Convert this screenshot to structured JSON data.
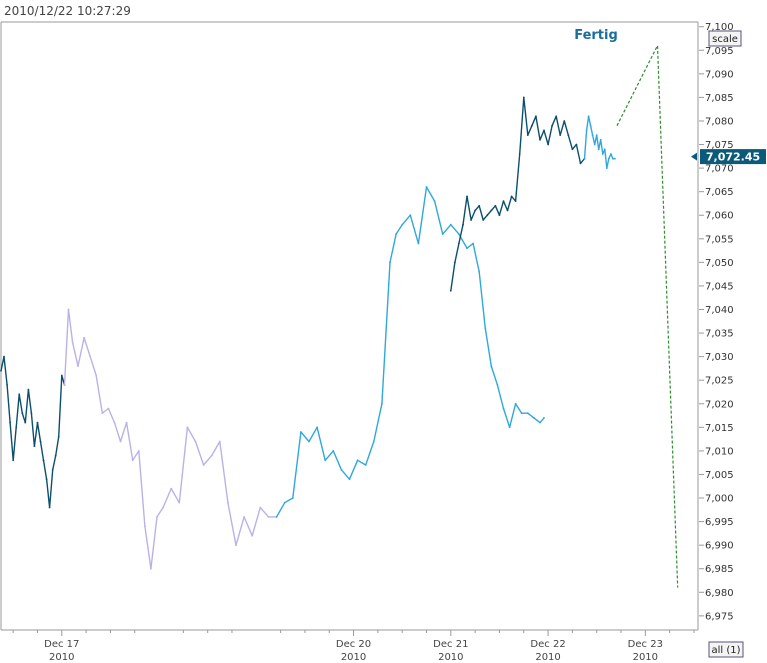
{
  "header": {
    "timestamp": "2010/12/22 10:27:29"
  },
  "controls": {
    "scale_label": "scale",
    "all_label": "all (1)"
  },
  "colors": {
    "dark": "#0b4f6c",
    "light_blue": "#2fa8dc",
    "lavender": "#b9b2e6",
    "forecast": "#2e8b2e",
    "axis": "#9a9a9a",
    "price_tag": "#0b5a7a",
    "annotation": "#1a6e9e"
  },
  "chart_data": {
    "type": "line",
    "title": "",
    "xlabel": "",
    "ylabel": "",
    "ylim": [
      6972,
      7101
    ],
    "yticks": [
      "7,100",
      "7,095",
      "7,090",
      "7,085",
      "7,080",
      "7,075",
      "7,070",
      "7,065",
      "7,060",
      "7,055",
      "7,050",
      "7,045",
      "7,040",
      "7,035",
      "7,030",
      "7,025",
      "7,020",
      "7,015",
      "7,010",
      "7,005",
      "7,000",
      "6,995",
      "6,990",
      "6,985",
      "6,980",
      "6,975"
    ],
    "xticks": [
      {
        "day": "Dec 17",
        "year": "2010"
      },
      {
        "day": "Dec 20",
        "year": "2010"
      },
      {
        "day": "Dec 21",
        "year": "2010"
      },
      {
        "day": "Dec 22",
        "year": "2010"
      },
      {
        "day": "Dec 23",
        "year": "2010"
      }
    ],
    "xlim": [
      "Dec 16 09:00",
      "Dec 23 13:00"
    ],
    "last_price": "7,072.45",
    "annotation": "Fertig",
    "series": [
      {
        "color_key": "dark",
        "x": [
          "Dec 16 09:00",
          "Dec 16 09:45",
          "Dec 16 10:30",
          "Dec 16 11:15",
          "Dec 16 12:00",
          "Dec 16 12:45",
          "Dec 16 13:30",
          "Dec 16 14:15",
          "Dec 16 15:00",
          "Dec 16 15:45",
          "Dec 16 16:30",
          "Dec 16 17:15",
          "Dec 16 18:00",
          "Dec 16 18:45",
          "Dec 16 19:30",
          "Dec 16 20:15",
          "Dec 16 21:00",
          "Dec 16 21:45",
          "Dec 16 22:30",
          "Dec 16 23:15",
          "Dec 17 00:00",
          "Dec 17 00:40"
        ],
        "values": [
          7027,
          7030,
          7024,
          7016,
          7008,
          7015,
          7022,
          7018,
          7016,
          7023,
          7018,
          7011,
          7016,
          7012,
          7008,
          7004,
          6998,
          7006,
          7009,
          7013,
          7026,
          7024
        ]
      },
      {
        "color_key": "lavender",
        "x": [
          "Dec 17 00:40",
          "Dec 17 01:40",
          "Dec 17 02:40",
          "Dec 17 04:00",
          "Dec 17 05:30",
          "Dec 17 07:00",
          "Dec 17 08:30",
          "Dec 17 10:00",
          "Dec 17 11:30",
          "Dec 17 13:00",
          "Dec 17 14:30",
          "Dec 17 16:00",
          "Dec 17 17:30",
          "Dec 17 19:00",
          "Dec 17 20:30",
          "Dec 17 22:00",
          "Dec 17 23:30",
          "Dec 18 01:00",
          "Dec 18 03:00",
          "Dec 18 05:00",
          "Dec 18 07:00",
          "Dec 18 09:00",
          "Dec 18 11:00",
          "Dec 18 13:00",
          "Dec 18 15:00",
          "Dec 18 17:00",
          "Dec 18 19:00",
          "Dec 18 21:00",
          "Dec 18 23:00",
          "Dec 19 01:00",
          "Dec 19 03:00",
          "Dec 19 05:00"
        ],
        "values": [
          7024,
          7040,
          7033,
          7028,
          7034,
          7030,
          7026,
          7018,
          7019,
          7016,
          7012,
          7016,
          7008,
          7010,
          6994,
          6985,
          6996,
          6998,
          7002,
          6999,
          7015,
          7012,
          7007,
          7009,
          7012,
          6999,
          6990,
          6996,
          6992,
          6998,
          6996,
          6996
        ]
      },
      {
        "color_key": "light_blue",
        "x": [
          "Dec 19 05:00",
          "Dec 19 07:00",
          "Dec 19 09:00",
          "Dec 19 11:00",
          "Dec 19 13:00",
          "Dec 19 15:00",
          "Dec 19 17:00",
          "Dec 19 19:00",
          "Dec 19 21:00",
          "Dec 19 23:00",
          "Dec 20 01:00",
          "Dec 20 03:00",
          "Dec 20 05:00",
          "Dec 20 07:00",
          "Dec 20 09:00",
          "Dec 20 10:30",
          "Dec 20 12:00",
          "Dec 20 14:00",
          "Dec 20 16:00",
          "Dec 20 18:00",
          "Dec 20 20:00",
          "Dec 20 22:00",
          "Dec 21 00:00",
          "Dec 21 02:00",
          "Dec 21 04:00",
          "Dec 21 05:30",
          "Dec 21 07:00",
          "Dec 21 08:30",
          "Dec 21 10:00",
          "Dec 21 11:30",
          "Dec 21 13:00",
          "Dec 21 14:30",
          "Dec 21 16:00",
          "Dec 21 17:30",
          "Dec 21 19:00",
          "Dec 21 20:30",
          "Dec 21 22:00",
          "Dec 21 23:00"
        ],
        "values": [
          6996,
          6999,
          7000,
          7014,
          7012,
          7015,
          7008,
          7010,
          7006,
          7004,
          7008,
          7007,
          7012,
          7020,
          7050,
          7056,
          7058,
          7060,
          7054,
          7066,
          7063,
          7056,
          7058,
          7056,
          7053,
          7054,
          7048,
          7036,
          7028,
          7024,
          7019,
          7015,
          7020,
          7018,
          7018,
          7017,
          7016,
          7017
        ]
      },
      {
        "color_key": "dark",
        "x": [
          "Dec 21 00:00",
          "Dec 21 01:00",
          "Dec 21 02:00",
          "Dec 21 03:00",
          "Dec 21 04:00",
          "Dec 21 05:00",
          "Dec 21 06:00",
          "Dec 21 07:00",
          "Dec 21 08:00",
          "Dec 21 09:00",
          "Dec 21 10:00",
          "Dec 21 11:00",
          "Dec 21 12:00",
          "Dec 21 13:00",
          "Dec 21 14:00",
          "Dec 21 15:00",
          "Dec 21 16:00",
          "Dec 21 17:00",
          "Dec 21 18:00",
          "Dec 21 19:00",
          "Dec 21 20:00",
          "Dec 21 21:00",
          "Dec 21 22:00",
          "Dec 21 23:00",
          "Dec 22 00:00",
          "Dec 22 01:00",
          "Dec 22 02:00",
          "Dec 22 03:00",
          "Dec 22 04:00",
          "Dec 22 05:00",
          "Dec 22 06:00",
          "Dec 22 07:00",
          "Dec 22 08:00",
          "Dec 22 09:00"
        ],
        "values": [
          7044,
          7050,
          7054,
          7058,
          7064,
          7059,
          7061,
          7062,
          7059,
          7060,
          7061,
          7062,
          7060,
          7063,
          7061,
          7064,
          7063,
          7073,
          7085,
          7077,
          7079,
          7081,
          7076,
          7078,
          7075,
          7079,
          7081,
          7077,
          7080,
          7077,
          7074,
          7075,
          7071,
          7072
        ]
      },
      {
        "color_key": "light_blue",
        "x": [
          "Dec 22 09:00",
          "Dec 22 09:30",
          "Dec 22 10:00",
          "Dec 22 10:30",
          "Dec 22 11:00",
          "Dec 22 11:30",
          "Dec 22 12:00",
          "Dec 22 12:30",
          "Dec 22 13:00",
          "Dec 22 13:30",
          "Dec 22 14:00",
          "Dec 22 14:30",
          "Dec 22 15:00",
          "Dec 22 15:30",
          "Dec 22 16:00",
          "Dec 22 16:30"
        ],
        "values": [
          7072,
          7078,
          7081,
          7079,
          7077,
          7075,
          7077,
          7074,
          7076,
          7073,
          7074,
          7070,
          7072,
          7073,
          7072,
          7072
        ]
      }
    ],
    "forecast": {
      "color_key": "forecast",
      "style": "dashed",
      "x": [
        "Dec 22 17:00",
        "Dec 23 03:00",
        "Dec 23 08:00"
      ],
      "values": [
        7079,
        7096,
        6981
      ]
    }
  }
}
